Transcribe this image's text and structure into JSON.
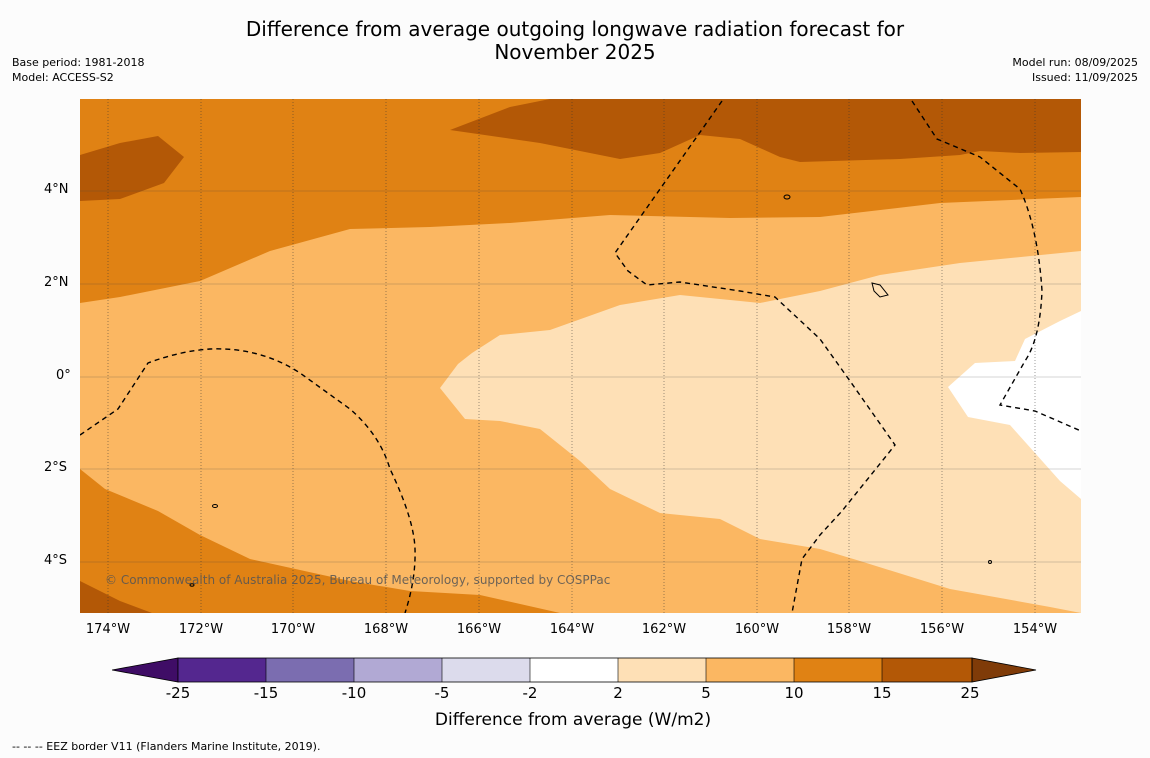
{
  "title_line1": "Difference from average outgoing longwave radiation forecast for",
  "title_line2": "November 2025",
  "base_period": "Base period: 1981-2018",
  "model": "Model: ACCESS-S2",
  "model_run": "Model run: 08/09/2025",
  "issued": "Issued: 11/09/2025",
  "lat_labels": [
    "4°N",
    "2°N",
    "0°",
    "2°S",
    "4°S"
  ],
  "lon_labels": [
    "174°W",
    "172°W",
    "170°W",
    "168°W",
    "166°W",
    "164°W",
    "162°W",
    "160°W",
    "158°W",
    "156°W",
    "154°W"
  ],
  "copyright": "© Commonwealth of Australia 2025, Bureau of Meteorology, supported by COSPPac",
  "colorbar": {
    "ticks": [
      "-25",
      "-15",
      "-10",
      "-5",
      "-2",
      "2",
      "5",
      "10",
      "15",
      "25"
    ],
    "label": "Difference from average (W/m2)",
    "colors": [
      "#3f0d66",
      "#54278f",
      "#7b6db0",
      "#b1a9d4",
      "#dcdbec",
      "#ffffff",
      "#fee0b6",
      "#fbb762",
      "#e08214",
      "#b35806",
      "#7f3b08"
    ]
  },
  "footnote": "--  --  -- EEZ border V11 (Flanders Marine Institute, 2019)."
}
